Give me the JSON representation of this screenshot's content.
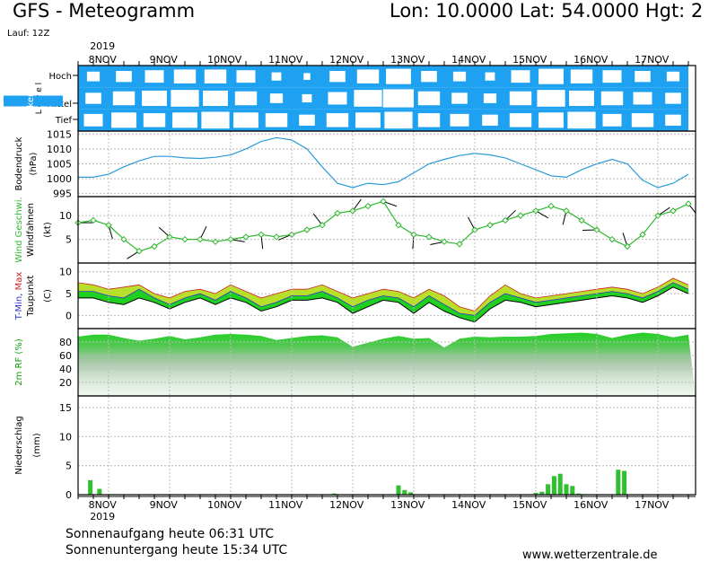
{
  "header": {
    "title": "GFS - Meteogramm",
    "coords": "Lon: 10.0000 Lat: 54.0000 Hgt: 2",
    "run": "Lauf: 12Z"
  },
  "year": "2019",
  "dates": [
    "8NOV",
    "9NOV",
    "10NOV",
    "11NOV",
    "12NOV",
    "13NOV",
    "14NOV",
    "15NOV",
    "16NOV",
    "17NOV"
  ],
  "footer": {
    "sunrise": "Sonnenaufgang heute 06:31 UTC",
    "sunset": "Sonnenuntergang heute 15:34 UTC",
    "site": "www.wetterzentrale.de"
  },
  "colors": {
    "cloud": "#1ea1f0",
    "pressure": "#2a9ad8",
    "wind_speed": "#2db82d",
    "temperature_fill": "#20d020",
    "temperature_max_fill": "#b8e02a",
    "t_min": "#3030d0",
    "t_max": "#d02020",
    "humidity": "#22d022",
    "precip": "#30c030",
    "grid": "#bbbbbb"
  },
  "chart_data": [
    {
      "type": "heatmap",
      "panel": "clouds",
      "ylabel": "Wolken (%)",
      "ylabel2": "L e v e l",
      "levels": [
        "Hoch",
        "Mittel",
        "Tief"
      ],
      "x": [
        0,
        0.5,
        1,
        1.5,
        2,
        2.5,
        3,
        3.5,
        4,
        4.5,
        5,
        5.5,
        6,
        6.5,
        7,
        7.5,
        8,
        8.5,
        9,
        9.5
      ],
      "high": [
        70,
        60,
        50,
        40,
        40,
        50,
        80,
        90,
        60,
        40,
        30,
        60,
        70,
        80,
        50,
        30,
        40,
        50,
        60,
        70
      ],
      "middle": [
        60,
        40,
        30,
        20,
        30,
        40,
        70,
        80,
        50,
        20,
        10,
        40,
        60,
        70,
        40,
        20,
        30,
        40,
        50,
        60
      ],
      "low": [
        50,
        30,
        40,
        30,
        20,
        30,
        40,
        60,
        40,
        30,
        20,
        40,
        50,
        60,
        40,
        30,
        20,
        50,
        40,
        60
      ]
    },
    {
      "type": "line",
      "panel": "pressure",
      "ylabel": "Bodendruck",
      "ylabel2": "(hPa)",
      "ylim": [
        994,
        1016
      ],
      "yticks": [
        995,
        1000,
        1005,
        1010,
        1015
      ],
      "x": [
        0,
        0.25,
        0.5,
        0.75,
        1,
        1.25,
        1.5,
        1.75,
        2,
        2.25,
        2.5,
        2.75,
        3,
        3.25,
        3.5,
        3.75,
        4,
        4.25,
        4.5,
        4.75,
        5,
        5.25,
        5.5,
        5.75,
        6,
        6.25,
        6.5,
        6.75,
        7,
        7.25,
        7.5,
        7.75,
        8,
        8.25,
        8.5,
        8.75,
        9,
        9.25,
        9.5,
        9.75,
        10
      ],
      "values": [
        1000.5,
        1000.5,
        1001.5,
        1004,
        1006,
        1007.5,
        1007.5,
        1007,
        1006.8,
        1007.2,
        1008,
        1010,
        1012.5,
        1013.8,
        1013,
        1010,
        1004,
        998.5,
        997,
        998.5,
        998,
        999,
        1002,
        1005,
        1006.5,
        1007.8,
        1008.5,
        1008,
        1007,
        1005,
        1003,
        1001,
        1000.5,
        1003,
        1005,
        1006.5,
        1005,
        999.5,
        997,
        998.5,
        1001.5
      ]
    },
    {
      "type": "line",
      "panel": "wind",
      "ylabel": "Wind Geschwi.",
      "ylabel2": "Windfahnen",
      "ylabel3": "(kt)",
      "ylim": [
        0,
        14
      ],
      "yticks": [
        5,
        10
      ],
      "x": [
        0,
        0.25,
        0.5,
        0.75,
        1,
        1.25,
        1.5,
        1.75,
        2,
        2.25,
        2.5,
        2.75,
        3,
        3.25,
        3.5,
        3.75,
        4,
        4.25,
        4.5,
        4.75,
        5,
        5.25,
        5.5,
        5.75,
        6,
        6.25,
        6.5,
        6.75,
        7,
        7.25,
        7.5,
        7.75,
        8,
        8.25,
        8.5,
        8.75,
        9,
        9.25,
        9.5,
        9.75,
        10
      ],
      "values": [
        8.5,
        9,
        8,
        5,
        2.5,
        3.5,
        5.5,
        5,
        5,
        4.5,
        5,
        5.5,
        6,
        5.5,
        6,
        7,
        8,
        10.5,
        11,
        12,
        13,
        8,
        6,
        5.5,
        4.5,
        4,
        7,
        8,
        9,
        10,
        11,
        12,
        11,
        9,
        7,
        5,
        3.5,
        6,
        10,
        11,
        12.5
      ]
    },
    {
      "type": "area",
      "panel": "temperature",
      "ylabel": "T-Min, Max",
      "ylabel2": "Taupunkt",
      "ylabel3": "(C)",
      "ylim": [
        -3,
        12
      ],
      "yticks": [
        0,
        5,
        10
      ],
      "x": [
        0,
        0.25,
        0.5,
        0.75,
        1,
        1.25,
        1.5,
        1.75,
        2,
        2.25,
        2.5,
        2.75,
        3,
        3.25,
        3.5,
        3.75,
        4,
        4.25,
        4.5,
        4.75,
        5,
        5.25,
        5.5,
        5.75,
        6,
        6.25,
        6.5,
        6.75,
        7,
        7.25,
        7.5,
        7.75,
        8,
        8.25,
        8.5,
        8.75,
        9,
        9.25,
        9.5,
        9.75,
        10
      ],
      "t_max": [
        7.5,
        7,
        6,
        6.5,
        7,
        5,
        4,
        5.5,
        6,
        5,
        7,
        5.5,
        4,
        5,
        6,
        6,
        7,
        5.5,
        4,
        5,
        6,
        5.5,
        4,
        6,
        4.5,
        2,
        1,
        4.5,
        7,
        5,
        4,
        4.5,
        5,
        5.5,
        6,
        6.5,
        6,
        5,
        6.5,
        8.5,
        7
      ],
      "t_min": [
        5.5,
        5.5,
        4.5,
        4,
        6,
        4,
        2.5,
        4,
        5,
        3.5,
        5.5,
        4,
        2,
        3,
        4.5,
        4.5,
        5.5,
        4,
        2,
        3.5,
        4.5,
        4,
        2,
        4.5,
        2.5,
        0.5,
        0,
        3,
        5,
        4,
        3,
        3.5,
        4,
        4.5,
        5,
        5.5,
        5,
        4,
        5.5,
        7.5,
        6
      ],
      "dewpoint": [
        4,
        4,
        3,
        2.5,
        4,
        3,
        1.5,
        3,
        4,
        2.5,
        4,
        3,
        1,
        2,
        3.5,
        3.5,
        4,
        3,
        0.5,
        2,
        3.5,
        3,
        0.5,
        3,
        1,
        -0.5,
        -1.5,
        1.5,
        3.5,
        3,
        2,
        2.5,
        3,
        3.5,
        4,
        4.5,
        4,
        3,
        4.5,
        6.5,
        5
      ]
    },
    {
      "type": "area",
      "panel": "humidity",
      "ylabel": "2m RF (%)",
      "ylim": [
        0,
        100
      ],
      "yticks": [
        20,
        40,
        60,
        80
      ],
      "x": [
        0,
        0.25,
        0.5,
        0.75,
        1,
        1.25,
        1.5,
        1.75,
        2,
        2.25,
        2.5,
        2.75,
        3,
        3.25,
        3.5,
        3.75,
        4,
        4.25,
        4.5,
        4.75,
        5,
        5.25,
        5.5,
        5.75,
        6,
        6.25,
        6.5,
        6.75,
        7,
        7.25,
        7.5,
        7.75,
        8,
        8.25,
        8.5,
        8.75,
        9,
        9.25,
        9.5,
        9.75,
        10
      ],
      "values": [
        88,
        91,
        91,
        86,
        82,
        85,
        89,
        84,
        87,
        91,
        92,
        91,
        89,
        83,
        86,
        89,
        90,
        87,
        73,
        79,
        85,
        89,
        85,
        86,
        72,
        85,
        88,
        87,
        88,
        88,
        89,
        92,
        93,
        94,
        92,
        86,
        91,
        94,
        92,
        87,
        91
      ]
    },
    {
      "type": "bar",
      "panel": "precipitation",
      "ylabel": "Niederschlag",
      "ylabel2": "(mm)",
      "ylim": [
        0,
        17
      ],
      "yticks": [
        0,
        5,
        10,
        15
      ],
      "x": [
        0.2,
        0.35,
        4.2,
        5.25,
        5.35,
        5.45,
        7.5,
        7.6,
        7.7,
        7.8,
        7.9,
        8.0,
        8.1,
        8.2,
        8.3,
        8.85,
        8.95
      ],
      "values": [
        2.5,
        1,
        0.2,
        1.6,
        0.8,
        0.4,
        0.3,
        0.5,
        1.8,
        3.2,
        3.6,
        1.8,
        1.5,
        0.2,
        0.1,
        4.3,
        4.1
      ]
    }
  ]
}
